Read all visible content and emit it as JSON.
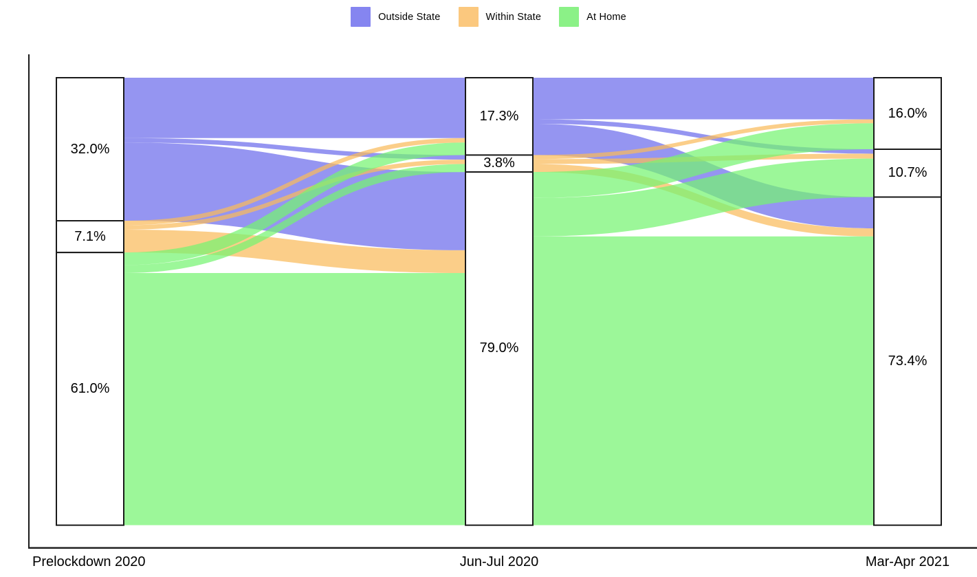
{
  "legend": {
    "items": [
      {
        "label": "Outside State",
        "color": "#8585f0"
      },
      {
        "label": "Within State",
        "color": "#fbc87e"
      },
      {
        "label": "At Home",
        "color": "#8bf187"
      }
    ]
  },
  "chart_data": {
    "type": "sankey",
    "title": "",
    "axis_labels": [
      "Prelockdown 2020",
      "Jun-Jul 2020",
      "Mar-Apr 2021"
    ],
    "strata": [
      "Outside State",
      "Within State",
      "At Home"
    ],
    "colors": {
      "outside": "#6c6cec",
      "within": "#fabb5b",
      "home": "#76f472"
    },
    "legend_position": "top-center",
    "unit": "percent of respondents",
    "nodes": [
      {
        "axis": "Prelockdown 2020",
        "values": [
          32.0,
          7.1,
          61.0
        ],
        "labels": [
          "32.0%",
          "7.1%",
          "61.0%"
        ]
      },
      {
        "axis": "Jun-Jul 2020",
        "values": [
          17.3,
          3.8,
          79.0
        ],
        "labels": [
          "17.3%",
          "3.8%",
          "79.0%"
        ]
      },
      {
        "axis": "Mar-Apr 2021",
        "values": [
          16.0,
          10.7,
          73.4
        ],
        "labels": [
          "16.0%",
          "10.7%",
          "73.4%"
        ]
      }
    ],
    "flows_estimated": [
      {
        "stage": 0,
        "from": 0,
        "to": 0,
        "value": 13.5
      },
      {
        "stage": 0,
        "from": 0,
        "to": 1,
        "value": 1.0
      },
      {
        "stage": 0,
        "from": 0,
        "to": 2,
        "value": 17.5
      },
      {
        "stage": 0,
        "from": 1,
        "to": 0,
        "value": 1.0
      },
      {
        "stage": 0,
        "from": 1,
        "to": 1,
        "value": 1.0
      },
      {
        "stage": 0,
        "from": 1,
        "to": 2,
        "value": 5.1
      },
      {
        "stage": 0,
        "from": 2,
        "to": 0,
        "value": 2.8
      },
      {
        "stage": 0,
        "from": 2,
        "to": 1,
        "value": 1.8
      },
      {
        "stage": 0,
        "from": 2,
        "to": 2,
        "value": 56.4
      },
      {
        "stage": 1,
        "from": 0,
        "to": 0,
        "value": 9.3
      },
      {
        "stage": 1,
        "from": 0,
        "to": 1,
        "value": 1.0
      },
      {
        "stage": 1,
        "from": 0,
        "to": 2,
        "value": 7.0
      },
      {
        "stage": 1,
        "from": 1,
        "to": 0,
        "value": 0.9
      },
      {
        "stage": 1,
        "from": 1,
        "to": 1,
        "value": 1.1
      },
      {
        "stage": 1,
        "from": 1,
        "to": 2,
        "value": 1.8
      },
      {
        "stage": 1,
        "from": 2,
        "to": 0,
        "value": 5.8
      },
      {
        "stage": 1,
        "from": 2,
        "to": 1,
        "value": 8.6
      },
      {
        "stage": 1,
        "from": 2,
        "to": 2,
        "value": 64.6
      }
    ]
  }
}
